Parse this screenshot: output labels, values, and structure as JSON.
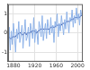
{
  "chart_data": {
    "type": "line",
    "x": [
      1870,
      1872,
      1874,
      1876,
      1878,
      1880,
      1882,
      1884,
      1886,
      1888,
      1890,
      1892,
      1894,
      1896,
      1898,
      1900,
      1902,
      1904,
      1906,
      1908,
      1910,
      1912,
      1914,
      1916,
      1918,
      1920,
      1922,
      1924,
      1926,
      1928,
      1930,
      1932,
      1934,
      1936,
      1938,
      1940,
      1942,
      1944,
      1946,
      1948,
      1950,
      1952,
      1954,
      1956,
      1958,
      1960,
      1962,
      1964,
      1966,
      1968,
      1970,
      1972,
      1974,
      1976,
      1978,
      1980,
      1982,
      1984,
      1986,
      1988,
      1990,
      1992,
      1994,
      1996,
      1998,
      2000,
      2002,
      2004,
      2006,
      2008
    ],
    "series": [
      {
        "color": "#8fb3e8",
        "values": [
          -0.4,
          0.3,
          -0.9,
          0.1,
          -0.6,
          0.5,
          -0.2,
          -1.0,
          0.2,
          -0.3,
          0.6,
          -0.5,
          -0.1,
          0.4,
          -0.8,
          0.0,
          0.7,
          -0.4,
          -0.2,
          0.3,
          -0.7,
          0.5,
          0.1,
          -0.3,
          0.8,
          -0.5,
          0.2,
          0.0,
          -0.6,
          0.6,
          0.3,
          -0.2,
          0.9,
          -0.4,
          0.1,
          0.5,
          -0.3,
          0.7,
          0.2,
          -0.1,
          0.8,
          0.0,
          0.4,
          -0.5,
          0.6,
          0.3,
          1.0,
          -0.2,
          0.5,
          0.1,
          0.9,
          0.4,
          -0.1,
          0.7,
          0.2,
          1.1,
          0.5,
          0.0,
          0.8,
          0.6,
          1.2,
          0.3,
          0.9,
          0.5,
          1.3,
          0.7,
          1.0,
          0.4,
          1.2,
          0.9
        ]
      },
      {
        "color": "#1f3f9a",
        "values": [
          -0.2,
          -0.2,
          -0.3,
          -0.3,
          -0.2,
          -0.2,
          -0.2,
          -0.2,
          -0.1,
          -0.1,
          0.0,
          0.0,
          0.0,
          -0.1,
          -0.1,
          0.0,
          0.0,
          -0.1,
          0.0,
          0.0,
          0.0,
          0.0,
          0.1,
          0.1,
          0.1,
          0.1,
          0.0,
          0.0,
          0.1,
          0.1,
          0.2,
          0.2,
          0.2,
          0.2,
          0.2,
          0.2,
          0.2,
          0.2,
          0.2,
          0.2,
          0.3,
          0.3,
          0.3,
          0.3,
          0.3,
          0.4,
          0.4,
          0.4,
          0.4,
          0.4,
          0.4,
          0.5,
          0.5,
          0.5,
          0.5,
          0.6,
          0.6,
          0.6,
          0.6,
          0.7,
          0.7,
          0.7,
          0.8,
          0.8,
          0.8,
          0.8,
          0.8,
          0.8,
          0.9,
          0.9
        ]
      }
    ],
    "xlim": [
      1870,
      2010
    ],
    "xticks": [
      1880,
      1920,
      1960,
      2000
    ],
    "ylim": [
      -1.5,
      1.5
    ],
    "yticks": [
      -1,
      0,
      1
    ],
    "grid": true
  }
}
